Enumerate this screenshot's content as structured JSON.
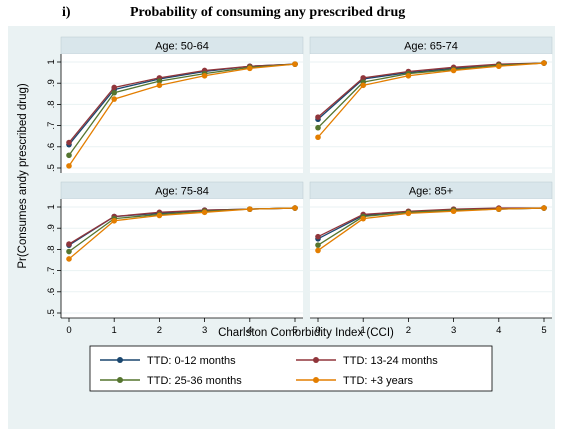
{
  "title_number": "i)",
  "title_text": "Probability of consuming any prescribed drug",
  "colors": {
    "figure_bg": "#eaf2f3",
    "panel_header_bg": "#d9e6eb",
    "panel_bg": "#ffffff",
    "grid": "#eaf2f3",
    "axis": "#000000"
  },
  "chart_data": {
    "type": "line",
    "xlabel": "Charlston Comorbidity Index (CCI)",
    "ylabel": "Pr(Consumes andy prescribed drug)",
    "xlim": [
      0,
      5
    ],
    "ylim": [
      0.5,
      1
    ],
    "x_ticks": [
      "0",
      "1",
      "2",
      "3",
      "4",
      "5"
    ],
    "y_ticks": [
      ".5",
      ".6",
      ".7",
      ".8",
      ".9",
      "1"
    ],
    "grid": true,
    "legend_position": "bottom",
    "series_styles": [
      {
        "name": "TTD: 0-12 months",
        "color": "#1a476f"
      },
      {
        "name": "TTD: 13-24 months",
        "color": "#90353b"
      },
      {
        "name": "TTD: 25-36 months",
        "color": "#55752f"
      },
      {
        "name": "TTD: +3 years",
        "color": "#e37e00"
      }
    ],
    "x": [
      0,
      1,
      2,
      3,
      4,
      5
    ],
    "panels": [
      {
        "title": "Age: 50-64",
        "series": [
          {
            "name": "TTD: 0-12 months",
            "values": [
              0.61,
              0.87,
              0.92,
              0.955,
              0.98,
              0.99
            ]
          },
          {
            "name": "TTD: 13-24 months",
            "values": [
              0.62,
              0.88,
              0.925,
              0.96,
              0.98,
              0.99
            ]
          },
          {
            "name": "TTD: 25-36 months",
            "values": [
              0.56,
              0.855,
              0.91,
              0.945,
              0.975,
              0.99
            ]
          },
          {
            "name": "TTD: +3 years",
            "values": [
              0.51,
              0.825,
              0.89,
              0.935,
              0.97,
              0.99
            ]
          }
        ]
      },
      {
        "title": "Age: 65-74",
        "series": [
          {
            "name": "TTD: 0-12 months",
            "values": [
              0.73,
              0.92,
              0.95,
              0.97,
              0.985,
              0.995
            ]
          },
          {
            "name": "TTD: 13-24 months",
            "values": [
              0.74,
              0.925,
              0.955,
              0.975,
              0.99,
              0.995
            ]
          },
          {
            "name": "TTD: 25-36 months",
            "values": [
              0.69,
              0.905,
              0.945,
              0.965,
              0.985,
              0.995
            ]
          },
          {
            "name": "TTD: +3 years",
            "values": [
              0.645,
              0.89,
              0.935,
              0.96,
              0.98,
              0.995
            ]
          }
        ]
      },
      {
        "title": "Age: 75-84",
        "series": [
          {
            "name": "TTD: 0-12 months",
            "values": [
              0.82,
              0.955,
              0.97,
              0.985,
              0.99,
              0.995
            ]
          },
          {
            "name": "TTD: 13-24 months",
            "values": [
              0.825,
              0.955,
              0.975,
              0.985,
              0.99,
              0.995
            ]
          },
          {
            "name": "TTD: 25-36 months",
            "values": [
              0.79,
              0.945,
              0.965,
              0.98,
              0.99,
              0.995
            ]
          },
          {
            "name": "TTD: +3 years",
            "values": [
              0.755,
              0.935,
              0.96,
              0.975,
              0.99,
              0.995
            ]
          }
        ]
      },
      {
        "title": "Age: 85+",
        "series": [
          {
            "name": "TTD: 0-12 months",
            "values": [
              0.85,
              0.96,
              0.975,
              0.985,
              0.99,
              0.995
            ]
          },
          {
            "name": "TTD: 13-24 months",
            "values": [
              0.86,
              0.965,
              0.98,
              0.99,
              0.995,
              0.995
            ]
          },
          {
            "name": "TTD: 25-36 months",
            "values": [
              0.82,
              0.955,
              0.975,
              0.985,
              0.99,
              0.995
            ]
          },
          {
            "name": "TTD: +3 years",
            "values": [
              0.795,
              0.945,
              0.97,
              0.98,
              0.99,
              0.995
            ]
          }
        ]
      }
    ]
  }
}
